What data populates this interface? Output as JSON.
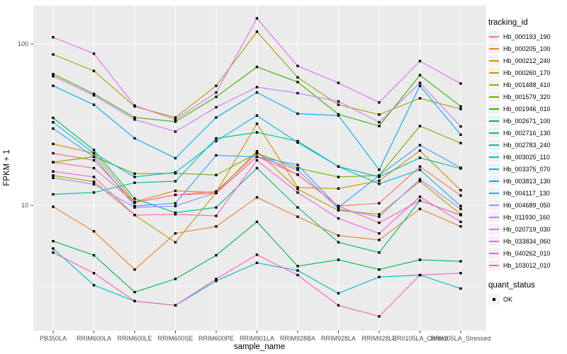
{
  "figure": {
    "x_axis_title": "sample_name",
    "y_axis_title": "FPKM + 1"
  },
  "legend": {
    "tracking_title": "tracking_id",
    "quant_title": "quant_status",
    "quant_items": [
      {
        "label": "OK",
        "marker": "black-square"
      }
    ]
  },
  "chart_data": {
    "type": "line",
    "title": "",
    "xlabel": "sample_name",
    "ylabel": "FPKM + 1",
    "y_scale": "log10",
    "yticks": [
      10,
      100
    ],
    "ytick_labels": [
      "10",
      "100"
    ],
    "y_minor_gridlines": [
      3.162,
      31.62
    ],
    "ylim_displayed": [
      1.67,
      172
    ],
    "grid": true,
    "legend_position": "right",
    "panel_bg": "#EBEBEB",
    "gridline_color": "#FFFFFF",
    "point_marker": "small-black-square",
    "categories": [
      "PB350LA",
      "RRIM600LA",
      "RRIM600LE",
      "RRIM600SE",
      "RRIM600PE",
      "RRIM901LA",
      "RRIM928BA",
      "RRIM928LA",
      "RRIM928LE",
      "RRII105LA_Control",
      "RRII105LA_Stressed"
    ],
    "series": [
      {
        "name": "Hb_000193_190",
        "color": "#F8766D",
        "values": [
          21,
          19,
          10.4,
          11.6,
          12.2,
          21,
          15.5,
          9.9,
          10.3,
          17.4,
          11.5
        ]
      },
      {
        "name": "Hb_000205_100",
        "color": "#EA8331",
        "values": [
          9.8,
          6.9,
          4.0,
          6.7,
          7.4,
          11.2,
          8.5,
          6.5,
          6.1,
          9.5,
          7.4
        ]
      },
      {
        "name": "Hb_000212_240",
        "color": "#D89000",
        "values": [
          24,
          21,
          10.5,
          12.3,
          12,
          32,
          12.9,
          12.7,
          14.2,
          21.8,
          12.4
        ]
      },
      {
        "name": "Hb_000260_170",
        "color": "#C09B00",
        "values": [
          15.3,
          14,
          8.7,
          5.9,
          12,
          21.6,
          12.6,
          9.3,
          8.8,
          14.1,
          8.8
        ]
      },
      {
        "name": "Hb_001488_410",
        "color": "#A3A500",
        "values": [
          86,
          68,
          41,
          35,
          55,
          119,
          62,
          42,
          36.5,
          46,
          39.5
        ]
      },
      {
        "name": "Hb_001579_320",
        "color": "#7CAE00",
        "values": [
          18.5,
          20,
          15.7,
          15.8,
          15.4,
          21,
          17,
          15,
          15.3,
          31,
          24.3
        ]
      },
      {
        "name": "Hb_001946_010",
        "color": "#39B600",
        "values": [
          65,
          49,
          35,
          33,
          47,
          72,
          58,
          36.6,
          31,
          64,
          41
        ]
      },
      {
        "name": "Hb_002671_100",
        "color": "#00BB4E",
        "values": [
          6.0,
          4.9,
          2.9,
          3.5,
          4.9,
          7.9,
          4.2,
          4.6,
          4.0,
          4.6,
          4.5
        ]
      },
      {
        "name": "Hb_002716_130",
        "color": "#00BF7D",
        "values": [
          34.8,
          22,
          11,
          9,
          9.7,
          17,
          9.7,
          5.9,
          5.1,
          10.7,
          8.7
        ]
      },
      {
        "name": "Hb_002783_240",
        "color": "#00C1A3",
        "values": [
          11.7,
          12,
          13.8,
          14.1,
          26,
          28.3,
          25,
          17.4,
          15,
          19.7,
          16.9
        ]
      },
      {
        "name": "Hb_003025_110",
        "color": "#00BFC4",
        "values": [
          5.4,
          3.2,
          2.55,
          2.4,
          3.4,
          4.4,
          3.95,
          2.85,
          3.6,
          3.7,
          3.05
        ]
      },
      {
        "name": "Hb_003375_070",
        "color": "#00BAE0",
        "values": [
          32.7,
          21,
          15,
          16,
          25,
          36,
          24.5,
          17.4,
          13.6,
          16.6,
          9.9
        ]
      },
      {
        "name": "Hb_003813_130",
        "color": "#00B0F6",
        "values": [
          55,
          42,
          26,
          19.6,
          35,
          50,
          37,
          36,
          16.6,
          55,
          27.4
        ]
      },
      {
        "name": "Hb_004117_130",
        "color": "#35A2FF",
        "values": [
          29.9,
          20,
          9.9,
          10.3,
          20.4,
          20,
          17.8,
          9.7,
          15.3,
          23.6,
          17.1
        ]
      },
      {
        "name": "Hb_004689_050",
        "color": "#9590FF",
        "values": [
          14.8,
          13.5,
          9.7,
          9.9,
          12,
          20,
          16.6,
          9.5,
          8.5,
          14.5,
          9.5
        ]
      },
      {
        "name": "Hb_011930_160",
        "color": "#C77CFF",
        "values": [
          63,
          48,
          34,
          28.6,
          40.5,
          54,
          49.5,
          44,
          32.7,
          57.3,
          30.8
        ]
      },
      {
        "name": "Hb_020719_030",
        "color": "#E76BF3",
        "values": [
          110,
          87,
          41.5,
          34,
          50,
          144,
          73,
          57.3,
          43.4,
          78.2,
          56.8
        ]
      },
      {
        "name": "Hb_033834_060",
        "color": "#FA62DB",
        "values": [
          16.2,
          15,
          8.7,
          8.8,
          8.6,
          19,
          12,
          8.3,
          6.7,
          11.3,
          7.9
        ]
      },
      {
        "name": "Hb_040262_010",
        "color": "#FF62BC",
        "values": [
          5.1,
          3.8,
          2.55,
          2.4,
          3.5,
          4.94,
          3.7,
          2.4,
          2.05,
          3.7,
          3.8
        ]
      },
      {
        "name": "Hb_103012_010",
        "color": "#FF6A98",
        "values": [
          18.5,
          17,
          10.4,
          11.6,
          11.9,
          20,
          15.5,
          9.9,
          7.8,
          10.7,
          8.7
        ]
      }
    ]
  }
}
